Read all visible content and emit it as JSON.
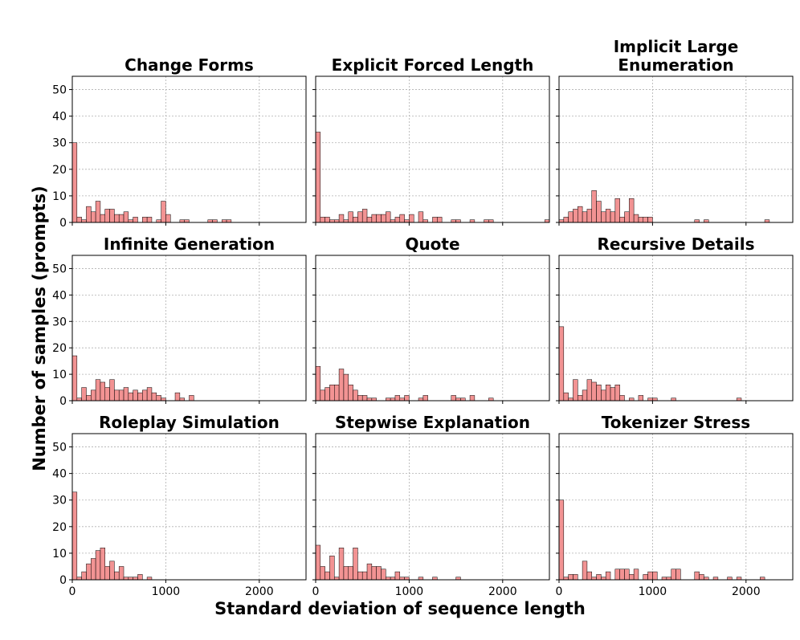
{
  "figure": {
    "xlabel": "Standard deviation of sequence length",
    "ylabel": "Number of samples (prompts)"
  },
  "style": {
    "bar_fill": "#f08080",
    "bar_stroke": "#000000",
    "grid_color": "#b0b0b0",
    "frame_color": "#000000"
  },
  "chart_data": [
    {
      "type": "bar",
      "title": [
        "Change Forms"
      ],
      "bin_width": 50,
      "xlim": [
        0,
        2500
      ],
      "ylim": [
        0,
        55
      ],
      "xticks": [
        0,
        1000,
        2000
      ],
      "yticks": [
        0,
        10,
        20,
        30,
        40,
        50
      ],
      "grid": true,
      "x": [
        0,
        50,
        100,
        150,
        200,
        250,
        300,
        350,
        400,
        450,
        500,
        550,
        600,
        650,
        750,
        800,
        900,
        950,
        1000,
        1150,
        1200,
        1450,
        1500,
        1600,
        1650
      ],
      "values": [
        30,
        2,
        1,
        6,
        4,
        8,
        3,
        5,
        5,
        3,
        3,
        4,
        1,
        2,
        2,
        2,
        1,
        8,
        3,
        1,
        1,
        1,
        1,
        1,
        1
      ]
    },
    {
      "type": "bar",
      "title": [
        "Explicit Forced Length"
      ],
      "bin_width": 50,
      "xlim": [
        0,
        2500
      ],
      "ylim": [
        0,
        55
      ],
      "xticks": [
        0,
        1000,
        2000
      ],
      "yticks": [
        0,
        10,
        20,
        30,
        40,
        50
      ],
      "grid": true,
      "x": [
        0,
        50,
        100,
        150,
        200,
        250,
        300,
        350,
        400,
        450,
        500,
        550,
        600,
        650,
        700,
        750,
        800,
        850,
        900,
        950,
        1000,
        1100,
        1150,
        1250,
        1300,
        1450,
        1500,
        1650,
        1800,
        1850,
        2450
      ],
      "values": [
        34,
        2,
        2,
        1,
        1,
        3,
        1,
        4,
        2,
        4,
        5,
        2,
        3,
        3,
        3,
        4,
        1,
        2,
        3,
        1,
        3,
        4,
        1,
        2,
        2,
        1,
        1,
        1,
        1,
        1,
        1
      ]
    },
    {
      "type": "bar",
      "title": [
        "Implicit Large",
        "Enumeration"
      ],
      "bin_width": 50,
      "xlim": [
        0,
        2500
      ],
      "ylim": [
        0,
        55
      ],
      "xticks": [
        0,
        1000,
        2000
      ],
      "yticks": [
        0,
        10,
        20,
        30,
        40,
        50
      ],
      "grid": true,
      "x": [
        0,
        50,
        100,
        150,
        200,
        250,
        300,
        350,
        400,
        450,
        500,
        550,
        600,
        650,
        700,
        750,
        800,
        850,
        900,
        950,
        1450,
        1550,
        2200
      ],
      "values": [
        1,
        2,
        4,
        5,
        6,
        4,
        5,
        12,
        8,
        4,
        5,
        4,
        9,
        2,
        4,
        9,
        3,
        2,
        2,
        2,
        1,
        1,
        1
      ]
    },
    {
      "type": "bar",
      "title": [
        "Infinite Generation"
      ],
      "bin_width": 50,
      "xlim": [
        0,
        2500
      ],
      "ylim": [
        0,
        55
      ],
      "xticks": [
        0,
        1000,
        2000
      ],
      "yticks": [
        0,
        10,
        20,
        30,
        40,
        50
      ],
      "grid": true,
      "x": [
        0,
        50,
        100,
        150,
        200,
        250,
        300,
        350,
        400,
        450,
        500,
        550,
        600,
        650,
        700,
        750,
        800,
        850,
        900,
        950,
        1100,
        1150,
        1250
      ],
      "values": [
        17,
        1,
        5,
        2,
        4,
        8,
        7,
        5,
        8,
        4,
        4,
        5,
        3,
        4,
        3,
        4,
        5,
        3,
        2,
        1,
        3,
        1,
        2
      ]
    },
    {
      "type": "bar",
      "title": [
        "Quote"
      ],
      "bin_width": 50,
      "xlim": [
        0,
        2500
      ],
      "ylim": [
        0,
        55
      ],
      "xticks": [
        0,
        1000,
        2000
      ],
      "yticks": [
        0,
        10,
        20,
        30,
        40,
        50
      ],
      "grid": true,
      "x": [
        0,
        50,
        100,
        150,
        200,
        250,
        300,
        350,
        400,
        450,
        500,
        550,
        600,
        750,
        800,
        850,
        900,
        950,
        1100,
        1150,
        1450,
        1500,
        1550,
        1650,
        1850
      ],
      "values": [
        13,
        4,
        5,
        6,
        6,
        12,
        10,
        6,
        4,
        2,
        2,
        1,
        1,
        1,
        1,
        2,
        1,
        2,
        1,
        2,
        2,
        1,
        1,
        2,
        1
      ]
    },
    {
      "type": "bar",
      "title": [
        "Recursive Details"
      ],
      "bin_width": 50,
      "xlim": [
        0,
        2500
      ],
      "ylim": [
        0,
        55
      ],
      "xticks": [
        0,
        1000,
        2000
      ],
      "yticks": [
        0,
        10,
        20,
        30,
        40,
        50
      ],
      "grid": true,
      "x": [
        0,
        50,
        100,
        150,
        200,
        250,
        300,
        350,
        400,
        450,
        500,
        550,
        600,
        650,
        750,
        850,
        950,
        1000,
        1200,
        1900
      ],
      "values": [
        28,
        3,
        1,
        8,
        2,
        4,
        8,
        7,
        6,
        4,
        6,
        5,
        6,
        2,
        1,
        2,
        1,
        1,
        1,
        1
      ]
    },
    {
      "type": "bar",
      "title": [
        "Roleplay Simulation"
      ],
      "bin_width": 50,
      "xlim": [
        0,
        2500
      ],
      "ylim": [
        0,
        55
      ],
      "xticks": [
        0,
        1000,
        2000
      ],
      "yticks": [
        0,
        10,
        20,
        30,
        40,
        50
      ],
      "grid": true,
      "x": [
        0,
        50,
        100,
        150,
        200,
        250,
        300,
        350,
        400,
        450,
        500,
        550,
        600,
        650,
        700,
        800
      ],
      "values": [
        33,
        1,
        3,
        6,
        8,
        11,
        12,
        5,
        7,
        3,
        5,
        1,
        1,
        1,
        2,
        1
      ]
    },
    {
      "type": "bar",
      "title": [
        "Stepwise Explanation"
      ],
      "bin_width": 50,
      "xlim": [
        0,
        2500
      ],
      "ylim": [
        0,
        55
      ],
      "xticks": [
        0,
        1000,
        2000
      ],
      "yticks": [
        0,
        10,
        20,
        30,
        40,
        50
      ],
      "grid": true,
      "x": [
        0,
        50,
        100,
        150,
        200,
        250,
        300,
        350,
        400,
        450,
        500,
        550,
        600,
        650,
        700,
        750,
        800,
        850,
        900,
        950,
        1100,
        1250,
        1500
      ],
      "values": [
        13,
        5,
        3,
        9,
        1,
        12,
        5,
        5,
        12,
        3,
        3,
        6,
        5,
        5,
        4,
        1,
        1,
        3,
        1,
        1,
        1,
        1,
        1
      ]
    },
    {
      "type": "bar",
      "title": [
        "Tokenizer Stress"
      ],
      "bin_width": 50,
      "xlim": [
        0,
        2500
      ],
      "ylim": [
        0,
        55
      ],
      "xticks": [
        0,
        1000,
        2000
      ],
      "yticks": [
        0,
        10,
        20,
        30,
        40,
        50
      ],
      "grid": true,
      "x": [
        0,
        50,
        100,
        150,
        250,
        300,
        350,
        400,
        450,
        500,
        600,
        650,
        700,
        750,
        800,
        900,
        950,
        1000,
        1100,
        1150,
        1200,
        1250,
        1450,
        1500,
        1550,
        1650,
        1800,
        1900,
        2150
      ],
      "values": [
        30,
        1,
        2,
        2,
        7,
        3,
        1,
        2,
        1,
        3,
        4,
        4,
        4,
        2,
        4,
        2,
        3,
        3,
        1,
        1,
        4,
        4,
        3,
        2,
        1,
        1,
        1,
        1,
        1
      ]
    }
  ]
}
